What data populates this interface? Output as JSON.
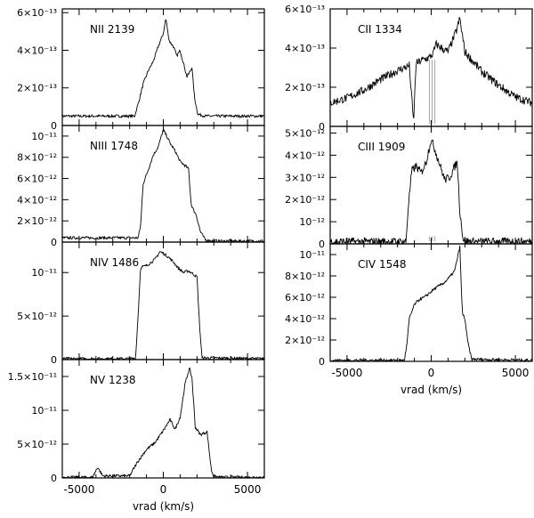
{
  "figure": {
    "xlabel": "vrad (km/s)"
  },
  "chart_data": [
    {
      "type": "line",
      "title": "NII 2139",
      "xlabel": "",
      "xlim": [
        -6000,
        6000
      ],
      "ylim": [
        0,
        6.2e-13
      ],
      "yticks": [
        {
          "v": 2e-13,
          "label": "2×10⁻¹³"
        },
        {
          "v": 4e-13,
          "label": "4×10⁻¹³"
        },
        {
          "v": 6e-13,
          "label": "6×10⁻¹³"
        }
      ],
      "zero_label": "0",
      "x": [
        -6000,
        -1700,
        -1450,
        -1200,
        -900,
        -600,
        -300,
        0,
        150,
        350,
        600,
        800,
        1000,
        1200,
        1400,
        1550,
        1700,
        1850,
        2050,
        2500,
        6000
      ],
      "y": [
        5e-14,
        5e-14,
        1.3e-13,
        2.2e-13,
        2.9e-13,
        3.4e-13,
        4.2e-13,
        4.9e-13,
        5.7e-13,
        4.5e-13,
        4.2e-13,
        3.7e-13,
        4e-13,
        3.3e-13,
        2.6e-13,
        2.8e-13,
        3.1e-13,
        1.5e-13,
        6e-14,
        5e-14,
        5e-14
      ]
    },
    {
      "type": "line",
      "title": "NIII 1748",
      "xlabel": "",
      "xlim": [
        -6000,
        6000
      ],
      "ylim": [
        0,
        1.1e-11
      ],
      "yticks": [
        {
          "v": 2e-12,
          "label": "2×10⁻¹²"
        },
        {
          "v": 4e-12,
          "label": "4×10⁻¹²"
        },
        {
          "v": 6e-12,
          "label": "6×10⁻¹²"
        },
        {
          "v": 8e-12,
          "label": "8×10⁻¹²"
        },
        {
          "v": 1e-11,
          "label": "10⁻¹¹"
        }
      ],
      "zero_label": "0",
      "x": [
        -6000,
        -1500,
        -1350,
        -1200,
        -900,
        -600,
        -300,
        0,
        200,
        450,
        700,
        1000,
        1300,
        1500,
        1650,
        1800,
        1950,
        2200,
        2500,
        3000,
        6000
      ],
      "y": [
        4e-13,
        4e-13,
        1.5e-12,
        5.5e-12,
        6.8e-12,
        8.2e-12,
        9e-12,
        1.06e-11,
        1e-11,
        9.2e-12,
        8.6e-12,
        7.6e-12,
        7.2e-12,
        6.9e-12,
        3.6e-12,
        3e-12,
        2.6e-12,
        1e-12,
        2e-13,
        1e-13,
        1e-13
      ]
    },
    {
      "type": "line",
      "title": "NIV 1486",
      "xlabel": "",
      "xlim": [
        -6000,
        6000
      ],
      "ylim": [
        0,
        1.35e-11
      ],
      "yticks": [
        {
          "v": 5e-12,
          "label": "5×10⁻¹²"
        },
        {
          "v": 1e-11,
          "label": "10⁻¹¹"
        }
      ],
      "zero_label": "0",
      "x": [
        -6000,
        -1650,
        -1500,
        -1350,
        -1000,
        -500,
        -200,
        0,
        300,
        600,
        900,
        1200,
        1500,
        1800,
        2000,
        2150,
        2300,
        6000
      ],
      "y": [
        1e-13,
        1e-13,
        5e-12,
        1.06e-11,
        1.08e-11,
        1.15e-11,
        1.24e-11,
        1.22e-11,
        1.18e-11,
        1.12e-11,
        1.05e-11,
        1e-11,
        1.02e-11,
        9.8e-12,
        9.5e-12,
        4e-12,
        2e-13,
        1e-13
      ]
    },
    {
      "type": "line",
      "title": "NV 1238",
      "xlabel": "vrad (km/s)",
      "xlim": [
        -6000,
        6000
      ],
      "ylim": [
        0,
        1.75e-11
      ],
      "yticks": [
        {
          "v": 5e-12,
          "label": "5×10⁻¹²"
        },
        {
          "v": 1e-11,
          "label": "10⁻¹¹"
        },
        {
          "v": 1.5e-11,
          "label": "1.5×10⁻¹¹"
        }
      ],
      "zero_label": "0",
      "xticks": [
        {
          "v": -5000,
          "label": "-5000"
        },
        {
          "v": 0,
          "label": "0"
        },
        {
          "v": 5000,
          "label": "5000"
        }
      ],
      "x": [
        -6000,
        -4200,
        -3900,
        -3600,
        -3000,
        -2000,
        -1500,
        -1000,
        -500,
        0,
        400,
        700,
        1000,
        1300,
        1550,
        1700,
        1900,
        2200,
        2600,
        2850,
        3000,
        3500,
        6000
      ],
      "y": [
        1e-13,
        1e-13,
        1.6e-12,
        3e-13,
        3e-13,
        3e-13,
        2.5e-12,
        4.2e-12,
        5.2e-12,
        7e-12,
        8.6e-12,
        7.2e-12,
        9e-12,
        1.4e-11,
        1.62e-11,
        1.48e-11,
        7.5e-12,
        6.4e-12,
        6.8e-12,
        1.2e-12,
        2e-13,
        1e-13,
        1e-13
      ]
    },
    {
      "type": "line",
      "title": "CII 1334",
      "xlabel": "",
      "xlim": [
        -6000,
        6000
      ],
      "ylim": [
        0,
        6e-13
      ],
      "yticks": [
        {
          "v": 2e-13,
          "label": "2×10⁻¹³"
        },
        {
          "v": 4e-13,
          "label": "4×10⁻¹³"
        },
        {
          "v": 6e-13,
          "label": "6×10⁻¹³"
        }
      ],
      "zero_label": "0",
      "x": [
        -6000,
        -5000,
        -4000,
        -3000,
        -2000,
        -1300,
        -1050,
        -900,
        -500,
        -150,
        100,
        300,
        600,
        1000,
        1500,
        1700,
        2000,
        3000,
        4000,
        5000,
        6000
      ],
      "y": [
        1.2e-13,
        1.45e-13,
        1.85e-13,
        2.4e-13,
        2.85e-13,
        3.1e-13,
        2e-14,
        3.2e-13,
        3.4e-13,
        3.5e-13,
        3.7e-13,
        4.2e-13,
        4e-13,
        3.8e-13,
        4.9e-13,
        5.5e-13,
        3.8e-13,
        2.8e-13,
        2.1e-13,
        1.5e-13,
        1.2e-13
      ]
    },
    {
      "type": "line",
      "title": "CIII 1909",
      "xlabel": "",
      "xlim": [
        -6000,
        6000
      ],
      "ylim": [
        0,
        5.3e-12
      ],
      "yticks": [
        {
          "v": 1e-12,
          "label": "10⁻¹²"
        },
        {
          "v": 2e-12,
          "label": "2×10⁻¹²"
        },
        {
          "v": 3e-12,
          "label": "3×10⁻¹²"
        },
        {
          "v": 4e-12,
          "label": "4×10⁻¹²"
        },
        {
          "v": 5e-12,
          "label": "5×10⁻¹²"
        }
      ],
      "zero_label": "0",
      "x": [
        -6000,
        -1500,
        -1350,
        -1150,
        -900,
        -600,
        -300,
        -100,
        0,
        200,
        500,
        800,
        1100,
        1400,
        1550,
        1700,
        1900,
        2200,
        6000
      ],
      "y": [
        1e-13,
        1e-13,
        1.8e-12,
        3.3e-12,
        3.5e-12,
        3.2e-12,
        3.7e-12,
        4.4e-12,
        4.7e-12,
        4.3e-12,
        3.6e-12,
        2.9e-12,
        3e-12,
        3.5e-12,
        3.7e-12,
        1.5e-12,
        2e-13,
        1e-13,
        1e-13
      ]
    },
    {
      "type": "line",
      "title": "CIV 1548",
      "xlabel": "vrad (km/s)",
      "xlim": [
        -6000,
        6000
      ],
      "ylim": [
        0,
        1.1e-11
      ],
      "yticks": [
        {
          "v": 2e-12,
          "label": "2×10⁻¹²"
        },
        {
          "v": 4e-12,
          "label": "4×10⁻¹²"
        },
        {
          "v": 6e-12,
          "label": "6×10⁻¹²"
        },
        {
          "v": 8e-12,
          "label": "8×10⁻¹²"
        },
        {
          "v": 1e-11,
          "label": "10⁻¹¹"
        }
      ],
      "zero_label": "0",
      "xticks": [
        {
          "v": -5000,
          "label": "-5000"
        },
        {
          "v": 0,
          "label": "0"
        },
        {
          "v": 5000,
          "label": "5000"
        }
      ],
      "x": [
        -6000,
        -1600,
        -1450,
        -1300,
        -1000,
        -700,
        -400,
        -100,
        200,
        500,
        800,
        1100,
        1400,
        1600,
        1700,
        1850,
        2000,
        2150,
        2400,
        6000
      ],
      "y": [
        1e-13,
        1e-13,
        1.5e-12,
        4e-12,
        5.3e-12,
        5.8e-12,
        6e-12,
        6.4e-12,
        6.8e-12,
        7.1e-12,
        7.4e-12,
        7.9e-12,
        8.5e-12,
        1e-11,
        1.07e-11,
        4.5e-12,
        4e-12,
        2e-12,
        2e-13,
        1e-13
      ]
    }
  ]
}
